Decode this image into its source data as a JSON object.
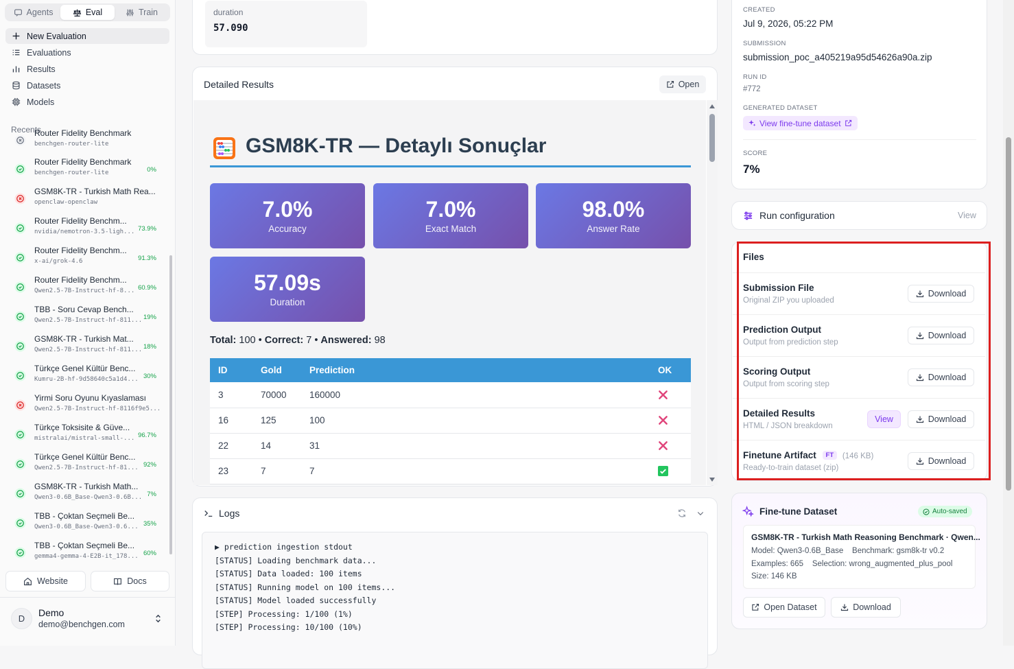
{
  "sidebar": {
    "tabs": [
      {
        "label": "Agents"
      },
      {
        "label": "Eval"
      },
      {
        "label": "Train"
      }
    ],
    "nav": [
      {
        "label": "New Evaluation",
        "icon": "plus-icon"
      },
      {
        "label": "Evaluations",
        "icon": "list-icon"
      },
      {
        "label": "Results",
        "icon": "bar-chart-icon"
      },
      {
        "label": "Datasets",
        "icon": "database-icon"
      },
      {
        "label": "Models",
        "icon": "cpu-icon"
      }
    ],
    "recents_label": "Recents",
    "recents": [
      {
        "title": "Router Fidelity Benchmark",
        "meta": "benchgen-router-lite",
        "score": "",
        "status": "cancelled"
      },
      {
        "title": "Router Fidelity Benchmark",
        "meta": "benchgen-router-lite",
        "score": "0%",
        "status": "success"
      },
      {
        "title": "GSM8K-TR - Turkish Math Rea...",
        "meta": "openclaw-openclaw",
        "score": "",
        "status": "failed"
      },
      {
        "title": "Router Fidelity Benchm...",
        "meta": "nvidia/nemotron-3.5-ligh...",
        "score": "73.9%",
        "status": "success"
      },
      {
        "title": "Router Fidelity Benchm...",
        "meta": "x-ai/grok-4.6",
        "score": "91.3%",
        "status": "success"
      },
      {
        "title": "Router Fidelity Benchm...",
        "meta": "Qwen2.5-7B-Instruct-hf-8...",
        "score": "60.9%",
        "status": "success"
      },
      {
        "title": "TBB - Soru Cevap Bench...",
        "meta": "Qwen2.5-7B-Instruct-hf-811...",
        "score": "19%",
        "status": "success"
      },
      {
        "title": "GSM8K-TR - Turkish Mat...",
        "meta": "Qwen2.5-7B-Instruct-hf-811...",
        "score": "18%",
        "status": "success"
      },
      {
        "title": "Türkçe Genel Kültür Benc...",
        "meta": "Kumru-2B-hf-9d58640c5a1d4...",
        "score": "30%",
        "status": "success"
      },
      {
        "title": "Yirmi Soru Oyunu Kıyaslaması",
        "meta": "Qwen2.5-7B-Instruct-hf-8116f9e5...",
        "score": "",
        "status": "failed"
      },
      {
        "title": "Türkçe Toksisite & Güve...",
        "meta": "mistralai/mistral-small-...",
        "score": "96.7%",
        "status": "success"
      },
      {
        "title": "Türkçe Genel Kültür Benc...",
        "meta": "Qwen2.5-7B-Instruct-hf-81...",
        "score": "92%",
        "status": "success"
      },
      {
        "title": "GSM8K-TR - Turkish Math...",
        "meta": "Qwen3-0.6B_Base-Qwen3-0.6B...",
        "score": "7%",
        "status": "success"
      },
      {
        "title": "TBB - Çoktan Seçmeli Be...",
        "meta": "Qwen3-0.6B_Base-Qwen3-0.6...",
        "score": "35%",
        "status": "success"
      },
      {
        "title": "TBB - Çoktan Seçmeli Be...",
        "meta": "gemma4-gemma-4-E2B-it_178...",
        "score": "60%",
        "status": "success"
      }
    ],
    "website_label": "Website",
    "docs_label": "Docs",
    "user": {
      "initial": "D",
      "name": "Demo",
      "email": "demo@benchgen.com"
    }
  },
  "summary": {
    "duration_label": "duration",
    "duration_value": "57.090"
  },
  "detailed": {
    "title": "Detailed Results",
    "open_label": "Open",
    "report": {
      "heading": "GSM8K-TR — Detaylı Sonuçlar",
      "stats": [
        {
          "value": "7.0%",
          "label": "Accuracy"
        },
        {
          "value": "7.0%",
          "label": "Exact Match"
        },
        {
          "value": "98.0%",
          "label": "Answer Rate"
        },
        {
          "value": "57.09s",
          "label": "Duration"
        }
      ],
      "totals": {
        "total_label": "Total:",
        "total": "100",
        "correct_label": "Correct:",
        "correct": "7",
        "answered_label": "Answered:",
        "answered": "98",
        "sep": "•"
      },
      "columns": [
        "ID",
        "Gold",
        "Prediction",
        "OK"
      ],
      "rows": [
        {
          "id": "3",
          "gold": "70000",
          "pred": "160000",
          "ok": false
        },
        {
          "id": "16",
          "gold": "125",
          "pred": "100",
          "ok": false
        },
        {
          "id": "22",
          "gold": "14",
          "pred": "31",
          "ok": false
        },
        {
          "id": "23",
          "gold": "7",
          "pred": "7",
          "ok": true
        }
      ]
    }
  },
  "logs": {
    "title": "Logs",
    "lines": [
      "▶ prediction ingestion stdout",
      "[STATUS] Loading benchmark data...",
      "[STATUS] Data loaded: 100 items",
      "[STATUS] Running model on 100 items...",
      "[STATUS] Model loaded successfully",
      "[STEP] Processing: 1/100 (1%)",
      "[STEP] Processing: 10/100 (10%)"
    ]
  },
  "info": {
    "created_label": "CREATED",
    "created": "Jul 9, 2026, 05:22 PM",
    "submission_label": "SUBMISSION",
    "submission": "submission_poc_a405219a95d54626a90a.zip",
    "run_id_label": "RUN ID",
    "run_id": "#772",
    "generated_label": "GENERATED DATASET",
    "generated_link": "View fine-tune dataset",
    "score_label": "SCORE",
    "score": "7%"
  },
  "run_config": {
    "title": "Run configuration",
    "view_label": "View"
  },
  "files": {
    "title": "Files",
    "download_label": "Download",
    "view_label": "View",
    "items": [
      {
        "name": "Submission File",
        "desc": "Original ZIP you uploaded"
      },
      {
        "name": "Prediction Output",
        "desc": "Output from prediction step"
      },
      {
        "name": "Scoring Output",
        "desc": "Output from scoring step"
      },
      {
        "name": "Detailed Results",
        "desc": "HTML / JSON breakdown"
      },
      {
        "name": "Finetune Artifact",
        "desc": "Ready-to-train dataset (zip)",
        "badge": "FT",
        "size": "(146 KB)"
      }
    ]
  },
  "finetune": {
    "title": "Fine-tune Dataset",
    "badge": "Auto-saved",
    "name": "GSM8K-TR - Turkish Math Reasoning Benchmark · Qwen...",
    "model_line": "Model: Qwen3-0.6B_Base",
    "benchmark_line": "Benchmark: gsm8k-tr v0.2",
    "examples_line": "Examples: 665",
    "selection_line": "Selection: wrong_augmented_plus_pool",
    "size_line": "Size: 146 KB",
    "open_label": "Open Dataset",
    "download_label": "Download"
  },
  "colors": {
    "accent": "#7c3aed",
    "success": "#16a34a",
    "error": "#dc2626",
    "table_header": "#3a97d6",
    "highlight": "#dc1f1f"
  }
}
